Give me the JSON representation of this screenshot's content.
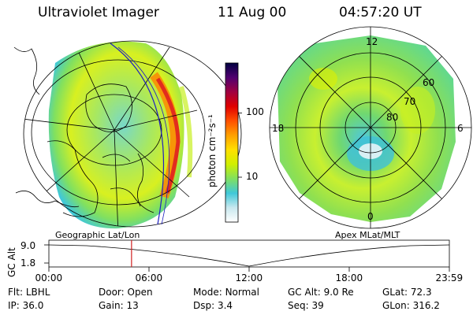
{
  "header": {
    "title": "Ultraviolet Imager",
    "date": "11 Aug 00",
    "time": "04:57:20 UT"
  },
  "colorbar": {
    "unit": "photon cm⁻²s⁻¹",
    "ticks": [
      {
        "label": "100",
        "value": 100
      },
      {
        "label": "10",
        "value": 10
      }
    ],
    "stops": [
      "#ffffff",
      "#c8e8ee",
      "#40c8d8",
      "#80e060",
      "#d0f000",
      "#ffe000",
      "#ffa000",
      "#ff5000",
      "#e00000",
      "#a00040",
      "#500070",
      "#000040"
    ]
  },
  "left_panel": {
    "caption": "Geographic Lat/Lon"
  },
  "right_panel": {
    "caption": "Apex MLat/MLT",
    "mlt_labels": {
      "top": "12",
      "left": "18",
      "right": "6",
      "bottom": "0"
    },
    "lat_labels": [
      "60",
      "70",
      "80"
    ]
  },
  "altitude_plot": {
    "ylabel": "GC Alt",
    "yticks": [
      "9.0",
      "1.8"
    ],
    "xticks": [
      "00:00",
      "06:00",
      "12:00",
      "18:00",
      "23:59"
    ],
    "marker_time": "04:57"
  },
  "status": [
    [
      {
        "label": "Flt:",
        "value": "LBHL"
      },
      {
        "label": "Door:",
        "value": "Open"
      },
      {
        "label": "Mode:",
        "value": "Normal"
      },
      {
        "label": "GC Alt:",
        "value": "9.0 Re"
      },
      {
        "label": "GLat:",
        "value": "72.3"
      }
    ],
    [
      {
        "label": "IP:",
        "value": "36.0"
      },
      {
        "label": "Gain:",
        "value": "13"
      },
      {
        "label": "Dsp:",
        "value": "3.4"
      },
      {
        "label": "Seq:",
        "value": "39"
      },
      {
        "label": "GLon:",
        "value": "316.2"
      }
    ]
  ],
  "colors": {
    "marker": "#d02020",
    "grid": "#000000"
  }
}
